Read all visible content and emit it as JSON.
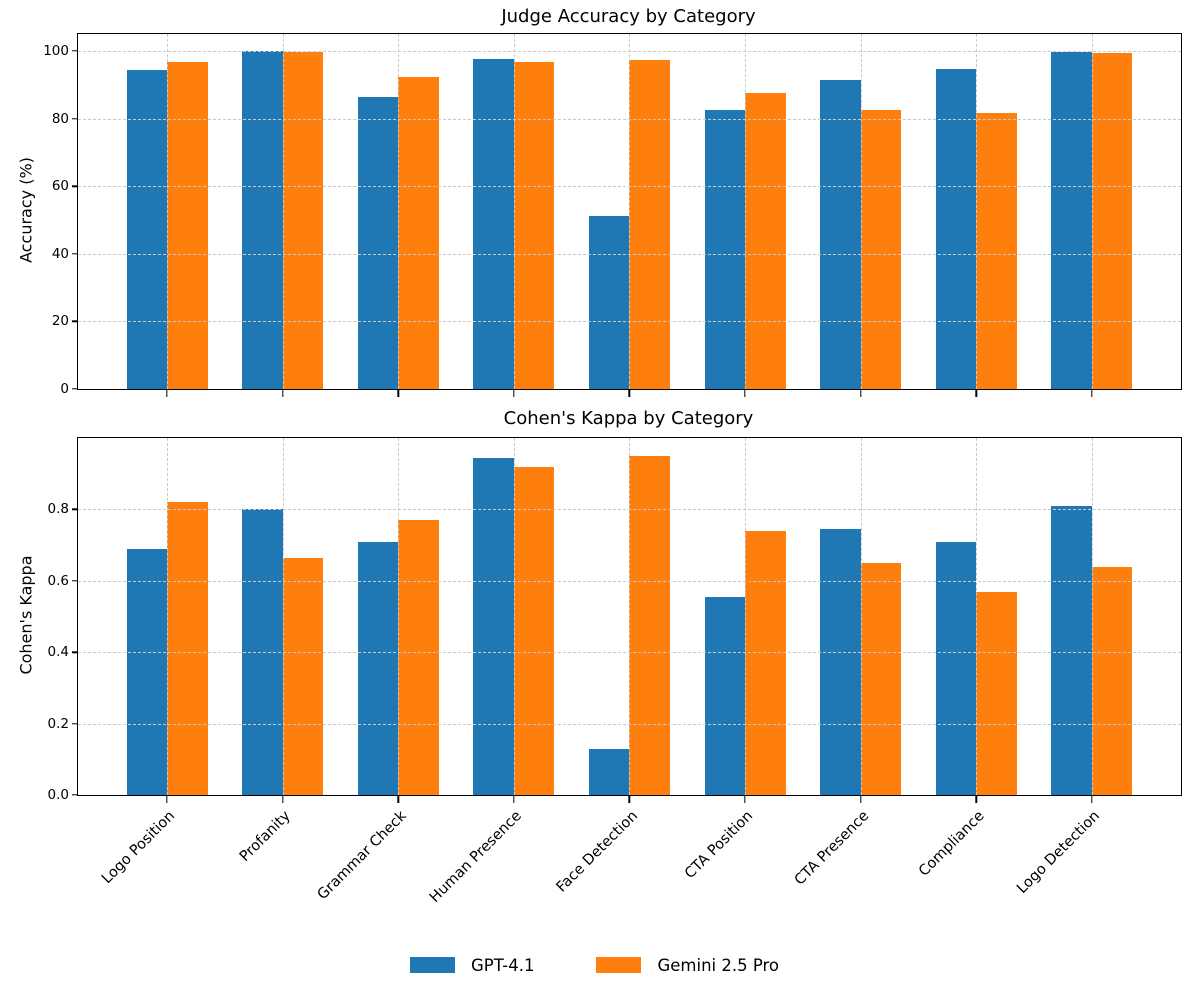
{
  "figure": {
    "colors": {
      "gpt41": "#1f77b4",
      "gemini25pro": "#ff7f0e",
      "grid": "#c9c9c9",
      "axis": "#000000"
    },
    "legend": {
      "position": "lower center",
      "items": [
        {
          "label": "GPT-4.1",
          "color": "#1f77b4"
        },
        {
          "label": "Gemini 2.5 Pro",
          "color": "#ff7f0e"
        }
      ]
    }
  },
  "chart_data": [
    {
      "type": "bar",
      "title": "Judge Accuracy by Category",
      "xlabel": "",
      "ylabel": "Accuracy (%)",
      "categories": [
        "Logo Position",
        "Profanity",
        "Grammar Check",
        "Human Presence",
        "Face Detection",
        "CTA Position",
        "CTA Presence",
        "Compliance",
        "Logo Detection"
      ],
      "series": [
        {
          "name": "GPT-4.1",
          "color": "#1f77b4",
          "values": [
            94.4,
            100.0,
            86.5,
            97.7,
            51.2,
            82.4,
            91.4,
            94.6,
            99.8
          ]
        },
        {
          "name": "Gemini 2.5 Pro",
          "color": "#ff7f0e",
          "values": [
            96.6,
            99.8,
            92.4,
            96.6,
            97.3,
            87.7,
            82.4,
            81.5,
            99.4
          ]
        }
      ],
      "ylim": [
        0,
        105
      ],
      "yticks": [
        0,
        20,
        40,
        60,
        80,
        100
      ],
      "ytick_labels": [
        "0",
        "20",
        "40",
        "60",
        "80",
        "100"
      ],
      "grid": true,
      "legend_position": "none",
      "show_x_labels": false
    },
    {
      "type": "bar",
      "title": "Cohen's Kappa by Category",
      "xlabel": "",
      "ylabel": "Cohen's Kappa",
      "categories": [
        "Logo Position",
        "Profanity",
        "Grammar Check",
        "Human Presence",
        "Face Detection",
        "CTA Position",
        "CTA Presence",
        "Compliance",
        "Logo Detection"
      ],
      "series": [
        {
          "name": "GPT-4.1",
          "color": "#1f77b4",
          "values": [
            0.69,
            0.8,
            0.71,
            0.945,
            0.13,
            0.555,
            0.745,
            0.71,
            0.81
          ]
        },
        {
          "name": "Gemini 2.5 Pro",
          "color": "#ff7f0e",
          "values": [
            0.82,
            0.665,
            0.77,
            0.92,
            0.95,
            0.74,
            0.65,
            0.57,
            0.64
          ]
        }
      ],
      "ylim": [
        0,
        1.0
      ],
      "yticks": [
        0.0,
        0.2,
        0.4,
        0.6,
        0.8
      ],
      "ytick_labels": [
        "0.0",
        "0.2",
        "0.4",
        "0.6",
        "0.8"
      ],
      "grid": true,
      "legend_position": "none",
      "show_x_labels": true
    }
  ]
}
